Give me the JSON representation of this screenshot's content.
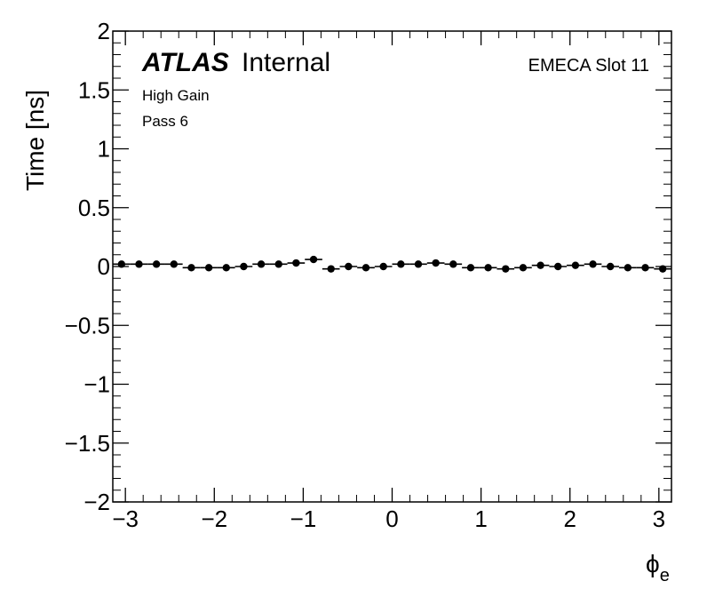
{
  "chart_data": {
    "type": "scatter",
    "xlabel_symbol": "ϕ",
    "xlabel_sub": "e",
    "ylabel": "Time [ns]",
    "xlim": [
      -3.1416,
      3.1416
    ],
    "ylim": [
      -2,
      2
    ],
    "x_ticks": [
      -3,
      -2,
      -1,
      0,
      1,
      2,
      3
    ],
    "x_tick_labels": [
      "−3",
      "−2",
      "−1",
      "0",
      "1",
      "2",
      "3"
    ],
    "y_ticks": [
      -2,
      -1.5,
      -1,
      -0.5,
      0,
      0.5,
      1,
      1.5,
      2
    ],
    "y_tick_labels": [
      "−2",
      "−1.5",
      "−1",
      "−0.5",
      "0",
      "0.5",
      "1",
      "1.5",
      "2"
    ],
    "bin_width": 0.19635,
    "x": [
      -3.0434,
      -2.847,
      -2.6507,
      -2.4543,
      -2.258,
      -2.0617,
      -1.8653,
      -1.669,
      -1.4726,
      -1.2763,
      -1.0799,
      -0.8836,
      -0.6872,
      -0.4909,
      -0.2945,
      -0.0982,
      0.0982,
      0.2945,
      0.4909,
      0.6872,
      0.8836,
      1.0799,
      1.2763,
      1.4726,
      1.669,
      1.8653,
      2.0617,
      2.258,
      2.4543,
      2.6507,
      2.847,
      3.0434
    ],
    "values": [
      0.02,
      0.02,
      0.02,
      0.02,
      -0.01,
      -0.01,
      -0.01,
      0.0,
      0.02,
      0.02,
      0.03,
      0.06,
      -0.02,
      0.0,
      -0.01,
      0.0,
      0.02,
      0.02,
      0.03,
      0.02,
      -0.01,
      -0.01,
      -0.02,
      -0.01,
      0.01,
      0.0,
      0.01,
      0.02,
      0.0,
      -0.01,
      -0.01,
      -0.02
    ],
    "labels": {
      "experiment": "ATLAS",
      "status": "Internal",
      "line1": "High Gain",
      "line2": "Pass 6",
      "slot": "EMECA Slot 11"
    },
    "marker_color": "#000000",
    "grid": false,
    "legend": "none"
  }
}
